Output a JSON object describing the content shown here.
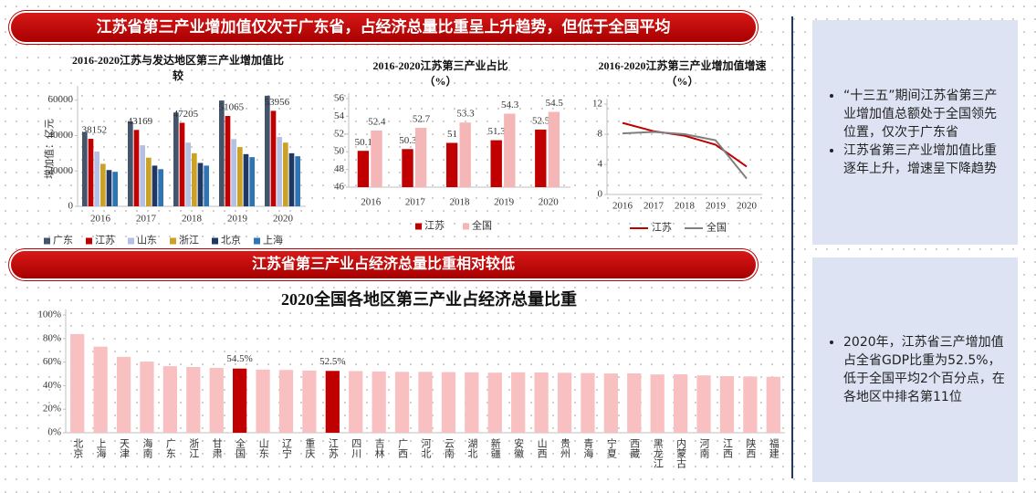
{
  "banners": [
    "江苏省第三产业增加值仅次于广东省，占经济总量比重呈上升趋势，但低于全国平均",
    "江苏省第三产业占经济总量比重相对较低"
  ],
  "chart_data": [
    {
      "type": "bar",
      "title": "2016-2020江苏与发达地区第三产业增加值比较",
      "ylabel": "增加值：亿元",
      "categories": [
        "2016",
        "2017",
        "2018",
        "2019",
        "2020"
      ],
      "series": [
        {
          "name": "广东",
          "color": "#44546a",
          "values": [
            42000,
            48000,
            53000,
            59800,
            62500
          ]
        },
        {
          "name": "江苏",
          "color": "#c00000",
          "values": [
            38152,
            43169,
            47205,
            51065,
            53956
          ],
          "data_labels": true
        },
        {
          "name": "山东",
          "color": "#b4c0e4",
          "values": [
            31000,
            34500,
            36000,
            38000,
            39200
          ]
        },
        {
          "name": "浙江",
          "color": "#c9a227",
          "values": [
            24000,
            27500,
            30000,
            33500,
            36000
          ]
        },
        {
          "name": "北京",
          "color": "#1f3864",
          "values": [
            20500,
            23000,
            24500,
            29500,
            30000
          ]
        },
        {
          "name": "上海",
          "color": "#2e75b6",
          "values": [
            19500,
            21000,
            23000,
            27800,
            28300
          ]
        }
      ],
      "ylim": [
        0,
        65000
      ],
      "yticks": [
        0,
        20000,
        40000,
        60000
      ],
      "grid": false
    },
    {
      "type": "bar",
      "title": "2016-2020江苏第三产业占比（%）",
      "categories": [
        "2016",
        "2017",
        "2018",
        "2019",
        "2020"
      ],
      "series": [
        {
          "name": "江苏",
          "color": "#c00000",
          "values": [
            50.1,
            50.3,
            51,
            51.3,
            52.5
          ],
          "data_labels": true
        },
        {
          "name": "全国",
          "color": "#f4b6b6",
          "values": [
            52.4,
            52.7,
            53.3,
            54.3,
            54.5
          ],
          "data_labels": true
        }
      ],
      "ylim": [
        46,
        56
      ],
      "yticks": [
        46,
        48,
        50,
        52,
        54,
        56
      ],
      "grid": false
    },
    {
      "type": "line",
      "title": "2016-2020江苏第三产业增加值增速（%）",
      "categories": [
        "2016",
        "2017",
        "2018",
        "2019",
        "2020"
      ],
      "series": [
        {
          "name": "江苏",
          "color": "#c00000",
          "values": [
            9.5,
            8.4,
            7.8,
            6.6,
            3.7
          ]
        },
        {
          "name": "全国",
          "color": "#7f7f7f",
          "values": [
            8.1,
            8.3,
            8.0,
            7.2,
            2.1
          ]
        }
      ],
      "ylim": [
        0,
        12
      ],
      "yticks": [
        0,
        4,
        8,
        12
      ],
      "grid": false
    },
    {
      "type": "bar",
      "title": "2020全国各地区第三产业占经济总量比重",
      "categories": [
        "北京",
        "上海",
        "天津",
        "海南",
        "广东",
        "浙江",
        "甘肃",
        "全国",
        "山东",
        "辽宁",
        "重庆",
        "江苏",
        "四川",
        "吉林",
        "广西",
        "河北",
        "云南",
        "湖北",
        "新疆",
        "安徽",
        "山西",
        "贵州",
        "青海",
        "宁夏",
        "西藏",
        "黑龙江",
        "内蒙古",
        "河南",
        "江西",
        "陕西",
        "福建"
      ],
      "values": [
        83.8,
        73.1,
        64.4,
        60.4,
        56.5,
        55.8,
        55.1,
        54.5,
        53.6,
        53.3,
        52.8,
        52.5,
        52.4,
        52.0,
        51.7,
        51.7,
        51.5,
        51.3,
        51.0,
        51.3,
        51.2,
        50.9,
        50.7,
        50.3,
        50.4,
        49.5,
        49.6,
        48.7,
        48.1,
        47.8,
        47.5
      ],
      "value_labels": [
        null,
        null,
        null,
        null,
        null,
        null,
        null,
        "54.5%",
        null,
        null,
        null,
        "52.5%",
        null,
        null,
        null,
        null,
        null,
        null,
        null,
        null,
        null,
        null,
        null,
        null,
        null,
        null,
        null,
        null,
        null,
        null,
        null
      ],
      "color": "#f8c0c0",
      "highlight_color": "#c00000",
      "ylim": [
        0,
        100
      ],
      "yticks": [
        {
          "value": 0,
          "label": "0%"
        },
        {
          "value": 20,
          "label": "20%"
        },
        {
          "value": 40,
          "label": "40%"
        },
        {
          "value": 60,
          "label": "60%"
        },
        {
          "value": 80,
          "label": "80%"
        },
        {
          "value": 100,
          "label": "100%"
        }
      ],
      "grid": false
    }
  ],
  "notes": [
    [
      "“十三五”期间江苏省第三产业增加值总额处于全国领先位置，仅次于广东省",
      "江苏省第三产业增加值比重逐年上升，增速呈下降趋势"
    ],
    [
      "2020年，江苏省三产增加值占全省GDP比重为52.5%，低于全国平均2个百分点，在各地区中排名第11位"
    ]
  ]
}
